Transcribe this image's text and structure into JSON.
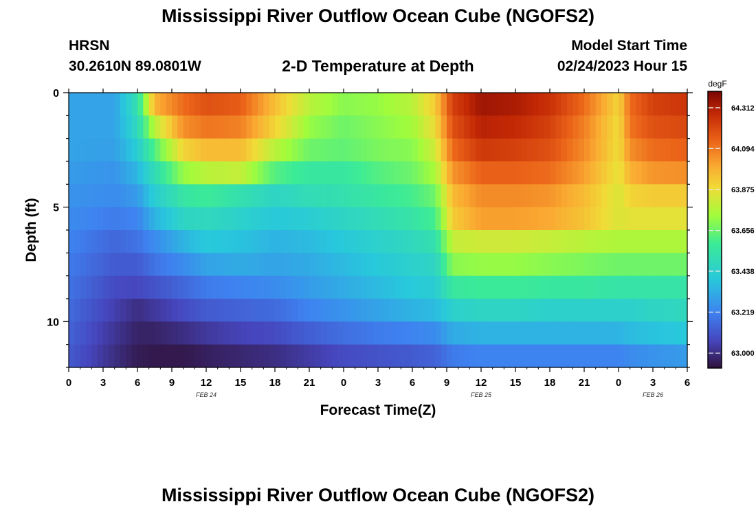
{
  "header": {
    "title": "Mississippi River Outflow Ocean Cube (NGOFS2)",
    "station": "HRSN",
    "coords": "30.2610N  89.0801W",
    "subtitle": "2-D Temperature at Depth",
    "start_label": "Model Start Time",
    "start_value": "02/24/2023 Hour 15"
  },
  "footer": {
    "title": "Mississippi River Outflow Ocean Cube (NGOFS2)"
  },
  "chart_data": {
    "type": "heatmap",
    "xlabel": "Forecast Time(Z)",
    "ylabel": "Depth (ft)",
    "x_hours_range": [
      0,
      54
    ],
    "x_tick_labels": [
      "0",
      "3",
      "6",
      "9",
      "12",
      "15",
      "18",
      "21",
      "0",
      "3",
      "6",
      "9",
      "12",
      "15",
      "18",
      "21",
      "0",
      "3",
      "6"
    ],
    "date_labels": [
      {
        "label": "FEB 24",
        "at_hour": 12
      },
      {
        "label": "FEB 25",
        "at_hour": 36
      },
      {
        "label": "FEB 26",
        "at_hour": 51
      }
    ],
    "y_ticks": [
      0,
      5,
      10
    ],
    "ylim": [
      0,
      12
    ],
    "colorbar": {
      "unit": "degF",
      "ticks": [
        64.312,
        64.094,
        63.875,
        63.656,
        63.438,
        63.219,
        63.0
      ],
      "range": [
        62.92,
        64.4
      ]
    },
    "grid": false,
    "depth_levels_ft": [
      0.5,
      1.5,
      2.5,
      3.5,
      4.5,
      5.5,
      6.5,
      7.5,
      8.5,
      9.5,
      10.5,
      11.5
    ],
    "time_knots_hours": [
      0,
      4,
      6,
      7.5,
      10,
      12,
      15,
      18,
      21,
      24,
      27,
      30,
      32,
      33.5,
      36,
      39,
      42,
      45,
      48,
      49,
      51,
      54
    ],
    "temperature_degF": [
      [
        63.3,
        63.3,
        63.52,
        63.98,
        64.12,
        64.18,
        64.15,
        63.95,
        63.78,
        63.7,
        63.72,
        63.78,
        63.92,
        64.22,
        64.34,
        64.32,
        64.26,
        64.12,
        63.9,
        64.12,
        64.22,
        64.25
      ],
      [
        63.3,
        63.3,
        63.48,
        63.78,
        64.05,
        64.1,
        64.08,
        63.9,
        63.72,
        63.66,
        63.7,
        63.74,
        63.88,
        64.18,
        64.3,
        64.28,
        64.22,
        64.08,
        63.88,
        64.1,
        64.18,
        64.2
      ],
      [
        63.3,
        63.29,
        63.42,
        63.62,
        63.9,
        63.96,
        63.96,
        63.78,
        63.66,
        63.64,
        63.68,
        63.7,
        63.82,
        64.12,
        64.24,
        64.22,
        64.18,
        64.06,
        63.88,
        64.05,
        64.12,
        64.14
      ],
      [
        63.28,
        63.26,
        63.35,
        63.5,
        63.72,
        63.78,
        63.8,
        63.62,
        63.56,
        63.56,
        63.62,
        63.66,
        63.75,
        64.04,
        64.14,
        64.14,
        64.12,
        64.02,
        63.86,
        63.98,
        64.04,
        64.05
      ],
      [
        63.26,
        63.24,
        63.28,
        63.42,
        63.55,
        63.58,
        63.52,
        63.46,
        63.5,
        63.52,
        63.56,
        63.6,
        63.66,
        63.96,
        64.06,
        64.06,
        64.04,
        63.96,
        63.84,
        63.9,
        63.92,
        63.92
      ],
      [
        63.24,
        63.2,
        63.22,
        63.34,
        63.46,
        63.48,
        63.44,
        63.4,
        63.42,
        63.46,
        63.5,
        63.54,
        63.6,
        63.92,
        64.02,
        64.02,
        64.0,
        63.94,
        63.84,
        63.86,
        63.86,
        63.86
      ],
      [
        63.22,
        63.15,
        63.18,
        63.24,
        63.34,
        63.4,
        63.38,
        63.34,
        63.36,
        63.4,
        63.44,
        63.48,
        63.52,
        63.8,
        63.82,
        63.82,
        63.8,
        63.78,
        63.76,
        63.76,
        63.76,
        63.76
      ],
      [
        63.2,
        63.12,
        63.12,
        63.18,
        63.24,
        63.3,
        63.32,
        63.3,
        63.32,
        63.36,
        63.4,
        63.44,
        63.46,
        63.7,
        63.72,
        63.72,
        63.7,
        63.68,
        63.66,
        63.66,
        63.66,
        63.66
      ],
      [
        63.18,
        63.08,
        63.07,
        63.1,
        63.15,
        63.2,
        63.22,
        63.24,
        63.28,
        63.32,
        63.36,
        63.4,
        63.42,
        63.56,
        63.58,
        63.58,
        63.56,
        63.56,
        63.54,
        63.54,
        63.54,
        63.54
      ],
      [
        63.16,
        63.05,
        63.0,
        63.03,
        63.08,
        63.12,
        63.14,
        63.16,
        63.22,
        63.26,
        63.3,
        63.34,
        63.36,
        63.44,
        63.46,
        63.46,
        63.44,
        63.44,
        63.44,
        63.44,
        63.46,
        63.48
      ],
      [
        63.14,
        63.02,
        62.97,
        62.97,
        63.0,
        63.03,
        63.06,
        63.08,
        63.13,
        63.17,
        63.2,
        63.22,
        63.24,
        63.32,
        63.34,
        63.34,
        63.34,
        63.34,
        63.34,
        63.36,
        63.38,
        63.4
      ],
      [
        63.12,
        63.0,
        62.95,
        62.94,
        62.94,
        62.96,
        62.98,
        63.0,
        63.04,
        63.08,
        63.1,
        63.12,
        63.14,
        63.2,
        63.22,
        63.22,
        63.22,
        63.22,
        63.22,
        63.24,
        63.26,
        63.28
      ]
    ]
  }
}
